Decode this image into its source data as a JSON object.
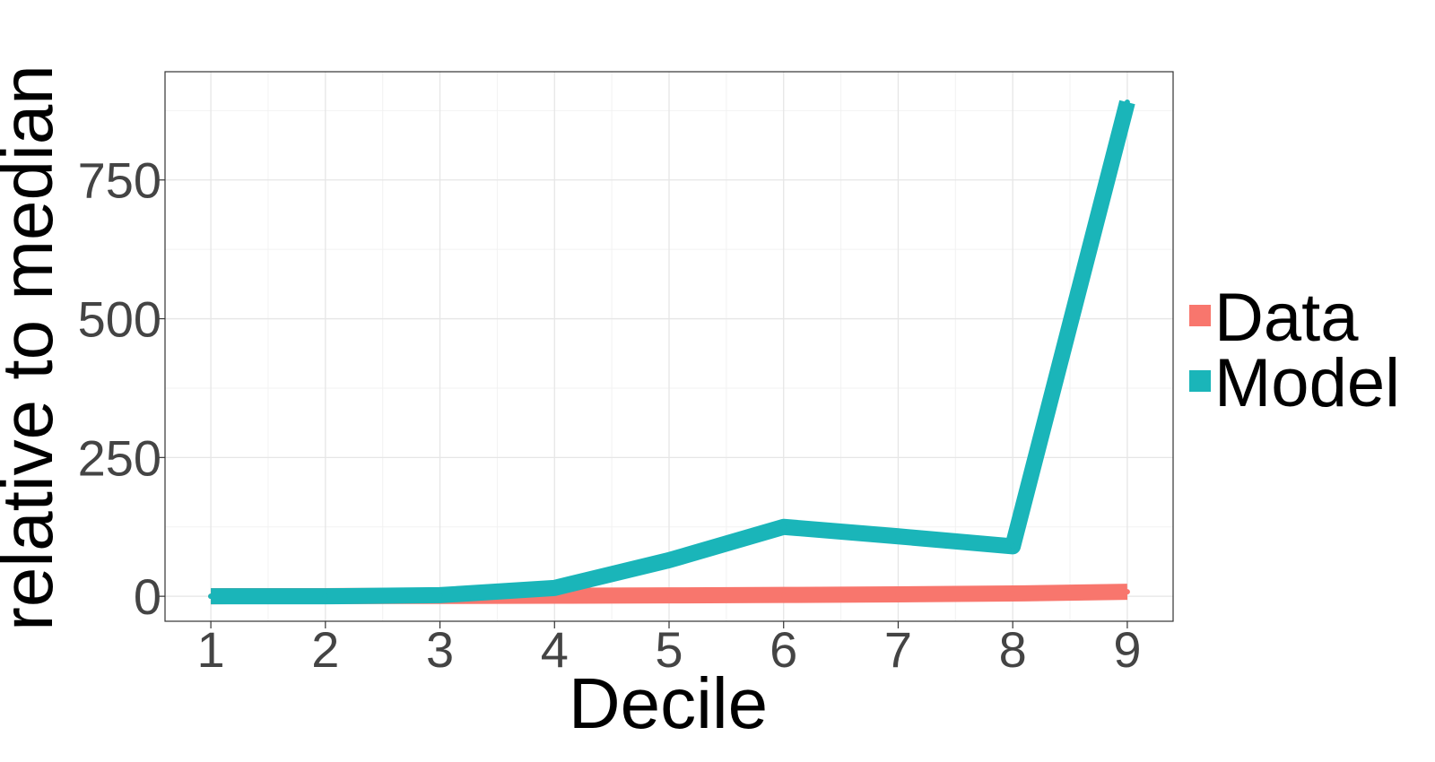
{
  "chart_data": {
    "type": "line",
    "title": "",
    "xlabel": "Decile",
    "ylabel": "relative to median",
    "x": [
      1,
      2,
      3,
      4,
      5,
      6,
      7,
      8,
      9
    ],
    "xticks": [
      "1",
      "2",
      "3",
      "4",
      "5",
      "6",
      "7",
      "8",
      "9"
    ],
    "yticks": [
      "0",
      "250",
      "500",
      "750"
    ],
    "ylim": [
      -45,
      945
    ],
    "xlim": [
      0.6,
      9.4
    ],
    "grid": true,
    "legend_position": "right",
    "series": [
      {
        "name": "Data",
        "color": "#F8766D",
        "values": [
          0.1,
          0.3,
          0.6,
          1.0,
          1.6,
          2.4,
          3.5,
          5.0,
          8.0
        ]
      },
      {
        "name": "Model",
        "color": "#1AB5B9",
        "values": [
          0,
          0,
          2,
          15,
          65,
          125,
          108,
          90,
          890
        ]
      }
    ]
  }
}
